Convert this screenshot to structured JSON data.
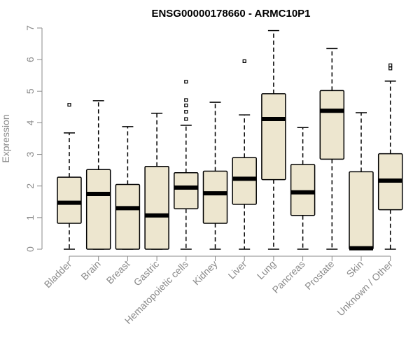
{
  "chart_data": {
    "type": "boxplot",
    "title": "ENSG00000178660 - ARMC10P1",
    "ylabel": "Expression",
    "ylim": [
      0,
      7
    ],
    "yticks": [
      0,
      1,
      2,
      3,
      4,
      5,
      6,
      7
    ],
    "box_color": "#ede6cf",
    "categories": [
      "Bladder",
      "Brain",
      "Breast",
      "Gastric",
      "Hematopoietic cells",
      "Kidney",
      "Liver",
      "Lung",
      "Pancreas",
      "Prostate",
      "Skin",
      "Unknown / Other"
    ],
    "series": [
      {
        "min": 0,
        "q1": 0.82,
        "median": 1.47,
        "q3": 2.28,
        "max": 3.68,
        "outliers": [
          4.57
        ]
      },
      {
        "min": 0,
        "q1": 0,
        "median": 1.75,
        "q3": 2.52,
        "max": 4.7,
        "outliers": []
      },
      {
        "min": 0,
        "q1": 0,
        "median": 1.3,
        "q3": 2.05,
        "max": 3.88,
        "outliers": []
      },
      {
        "min": 0,
        "q1": 0,
        "median": 1.07,
        "q3": 2.62,
        "max": 4.3,
        "outliers": []
      },
      {
        "min": 0,
        "q1": 1.28,
        "median": 1.95,
        "q3": 2.42,
        "max": 3.92,
        "outliers": [
          4.12,
          4.35,
          4.55,
          4.72,
          5.3
        ]
      },
      {
        "min": 0,
        "q1": 0.82,
        "median": 1.77,
        "q3": 2.47,
        "max": 4.65,
        "outliers": []
      },
      {
        "min": 0,
        "q1": 1.42,
        "median": 2.23,
        "q3": 2.9,
        "max": 4.25,
        "outliers": [
          5.95
        ]
      },
      {
        "min": 0,
        "q1": 2.2,
        "median": 4.12,
        "q3": 4.92,
        "max": 6.92,
        "outliers": []
      },
      {
        "min": 0,
        "q1": 1.07,
        "median": 1.8,
        "q3": 2.68,
        "max": 3.85,
        "outliers": []
      },
      {
        "min": 0,
        "q1": 2.85,
        "median": 4.38,
        "q3": 5.02,
        "max": 6.35,
        "outliers": []
      },
      {
        "min": 0,
        "q1": 0,
        "median": 0.03,
        "q3": 2.45,
        "max": 4.32,
        "outliers": []
      },
      {
        "min": 0,
        "q1": 1.25,
        "median": 2.17,
        "q3": 3.02,
        "max": 5.32,
        "outliers": [
          5.72,
          5.82
        ]
      }
    ]
  }
}
